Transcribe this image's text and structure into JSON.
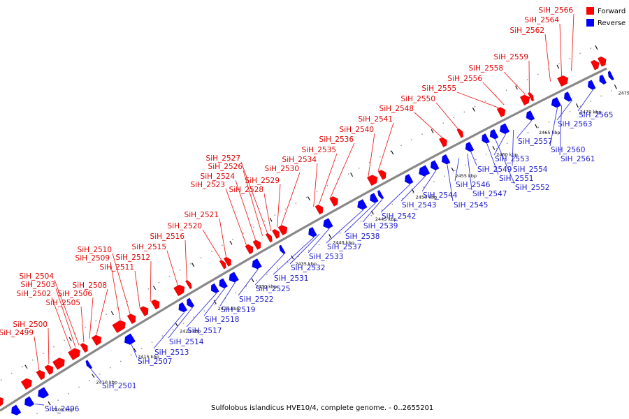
{
  "legend": {
    "forward": {
      "label": "Forward",
      "color": "#ff0000"
    },
    "reverse": {
      "label": "Reverse",
      "color": "#0000ff"
    }
  },
  "caption": "Sulfolobus islandicus HVE10/4, complete genome. - 0..2655201",
  "colors": {
    "label_forward": "#dd0000",
    "label_reverse": "#1a1acc",
    "line_forward": "#ee2222",
    "line_reverse": "#3333dd"
  },
  "axis_ticks": [
    "2405 kbp",
    "2410 kbp",
    "2415 kbp",
    "2420 kbp",
    "2425 kbp",
    "2430 kbp",
    "2435 kbp",
    "2440 kbp",
    "2445 kbp",
    "2450 kbp",
    "2455 kbp",
    "2460 kbp",
    "2465 kbp",
    "2470 kbp",
    "2475 kbp"
  ],
  "forward_genes": [
    "SiH_2499",
    "SiH_2500",
    "SiH_2502",
    "SiH_2503",
    "SiH_2504",
    "SiH_2505",
    "SiH_2506",
    "SiH_2508",
    "SiH_2509",
    "SiH_2510",
    "SiH_2511",
    "SiH_2512",
    "SiH_2515",
    "SiH_2516",
    "SiH_2520",
    "SiH_2521",
    "SiH_2523",
    "SiH_2524",
    "SiH_2526",
    "SiH_2527",
    "SiH_2528",
    "SiH_2529",
    "SiH_2530",
    "SiH_2534",
    "SiH_2535",
    "SiH_2536",
    "SiH_2540",
    "SiH_2541",
    "SiH_2548",
    "SiH_2550",
    "SiH_2555",
    "SiH_2556",
    "SiH_2558",
    "SiH_2559",
    "SiH_2562",
    "SiH_2564",
    "SiH_2566"
  ],
  "reverse_genes": [
    "SiH_2496",
    "SiH_2501",
    "SiH_2507",
    "SiH_2513",
    "SiH_2514",
    "SiH_2517",
    "SiH_2518",
    "SiH_2519",
    "SiH_2522",
    "SiH_2525",
    "SiH_2531",
    "SiH_2532",
    "SiH_2533",
    "SiH_2537",
    "SiH_2538",
    "SiH_2539",
    "SiH_2542",
    "SiH_2543",
    "SiH_2544",
    "SiH_2545",
    "SiH_2546",
    "SiH_2547",
    "SiH_2549",
    "SiH_2551",
    "SiH_2552",
    "SiH_2553",
    "SiH_2554",
    "SiH_2557",
    "SiH_2560",
    "SiH_2561",
    "SiH_2563",
    "SiH_2565"
  ]
}
